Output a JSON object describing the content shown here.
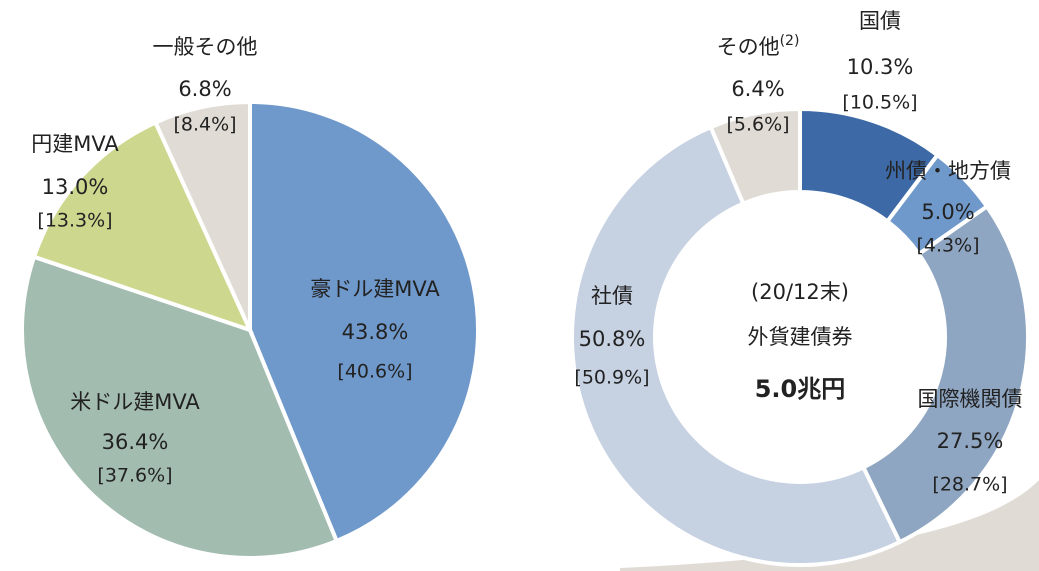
{
  "chart_data": [
    {
      "type": "pie",
      "categories": [
        "豪ドル建MVA",
        "米ドル建MVA",
        "円建MVA",
        "一般その他"
      ],
      "values": [
        43.8,
        36.4,
        13.0,
        6.8
      ],
      "value_labels": [
        "43.8%",
        "36.4%",
        "13.0%",
        "6.8%"
      ],
      "bracket_labels": [
        "[40.6%]",
        "[37.6%]",
        "[13.3%]",
        "[8.4%]"
      ],
      "colors": [
        "#7099cb",
        "#a3bcb0",
        "#cdd88e",
        "#e0dcd5"
      ]
    },
    {
      "type": "donut",
      "categories": [
        "国債",
        "州債・地方債",
        "国際機関債",
        "社債",
        "その他"
      ],
      "category_notes": [
        null,
        null,
        null,
        null,
        "(2)"
      ],
      "values": [
        10.3,
        5.0,
        27.5,
        50.8,
        6.4
      ],
      "value_labels": [
        "10.3%",
        "5.0%",
        "27.5%",
        "50.8%",
        "6.4%"
      ],
      "bracket_labels": [
        "[10.5%]",
        "[4.3%]",
        "[28.7%]",
        "[50.9%]",
        "[5.6%]"
      ],
      "colors": [
        "#3d6aa6",
        "#7099cb",
        "#8fa6c2",
        "#c6d1e2",
        "#e0dcd5"
      ],
      "center_text": [
        "(20/12末)",
        "外貨建債券",
        "5.0兆円"
      ]
    }
  ]
}
